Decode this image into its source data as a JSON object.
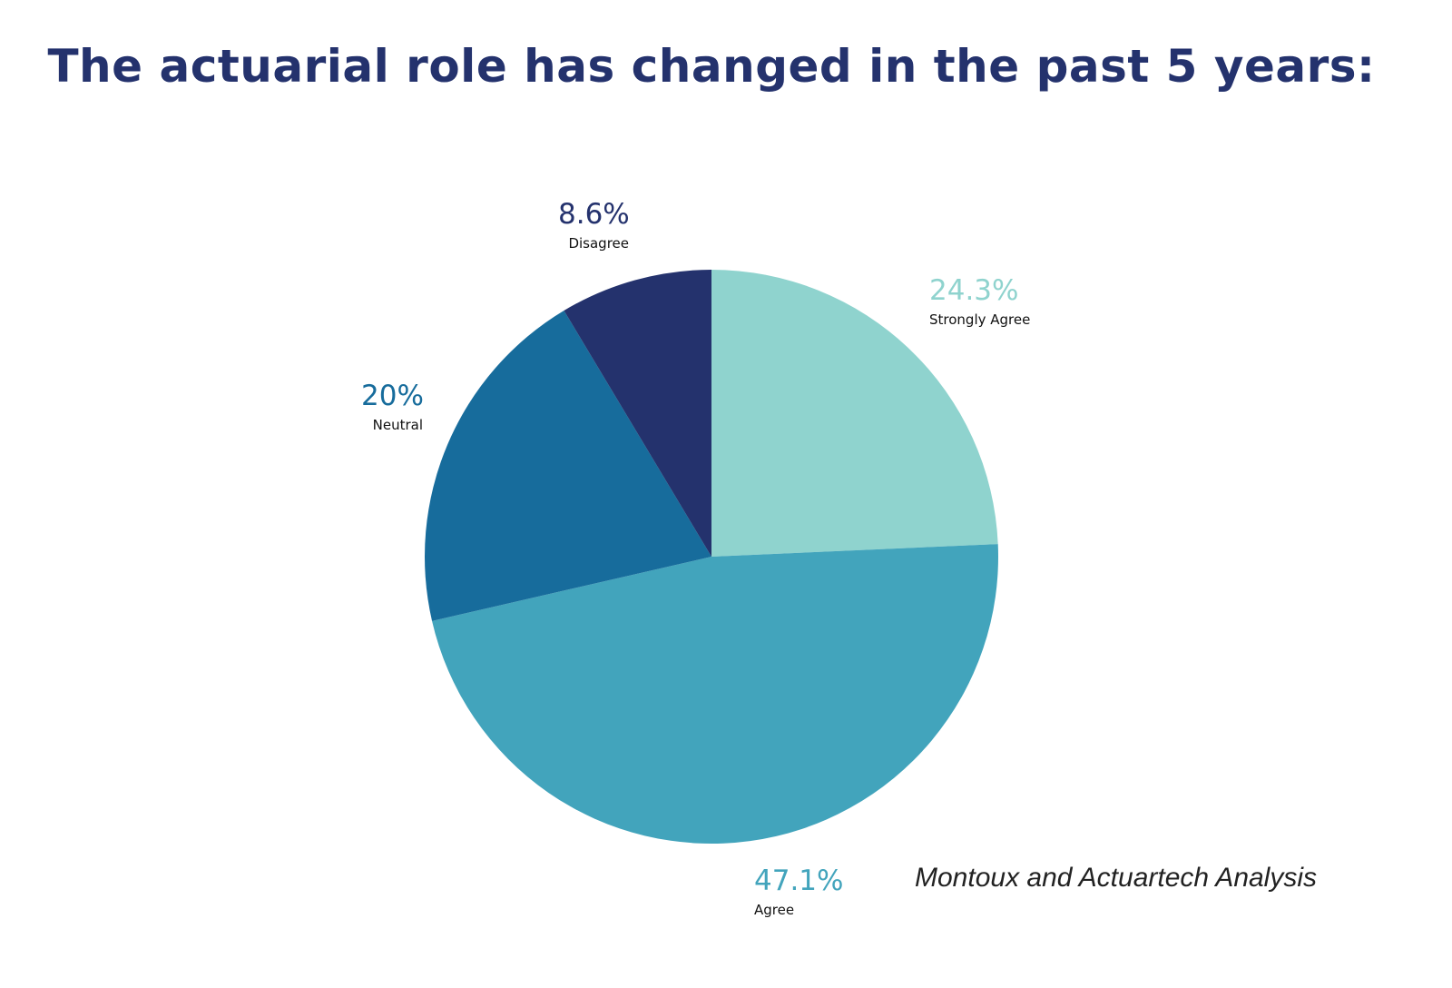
{
  "chart_data": {
    "type": "pie",
    "title": "The actuarial role has changed in the past 5 years:",
    "categories": [
      "Strongly Agree",
      "Agree",
      "Neutral",
      "Disagree"
    ],
    "values": [
      24.3,
      47.1,
      20,
      8.6
    ],
    "value_labels": [
      "24.3%",
      "47.1%",
      "20%",
      "8.6%"
    ],
    "colors": [
      "#8fd3ce",
      "#42a4bc",
      "#176c9c",
      "#24326d"
    ],
    "start_angle": "12 o'clock, clockwise",
    "legend": "none (direct labels)",
    "source": "Montoux and Actuartech Analysis"
  },
  "title": "The actuarial role has changed in the past 5 years:",
  "labels": {
    "strongly_agree": {
      "pct": "24.3%",
      "name": "Strongly Agree"
    },
    "agree": {
      "pct": "47.1%",
      "name": "Agree"
    },
    "neutral": {
      "pct": "20%",
      "name": "Neutral"
    },
    "disagree": {
      "pct": "8.6%",
      "name": "Disagree"
    }
  },
  "source": "Montoux and Actuartech Analysis"
}
